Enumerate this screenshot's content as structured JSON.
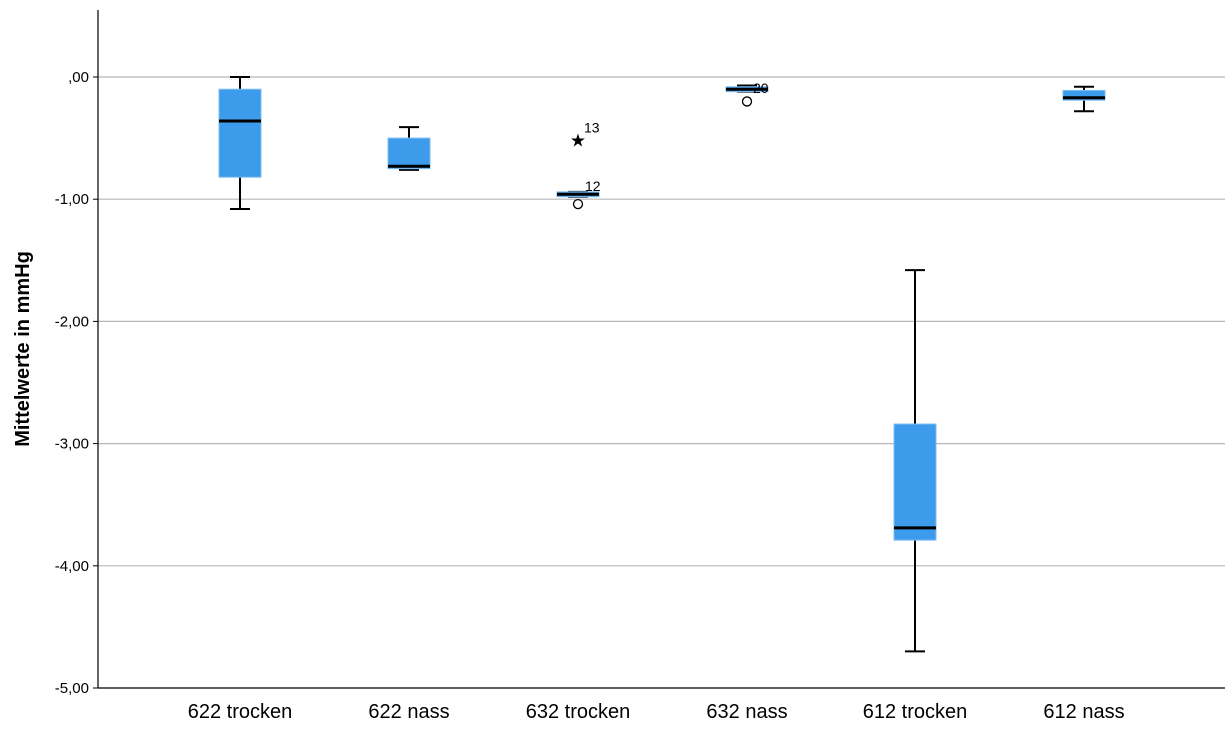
{
  "chart_data": {
    "type": "boxplot",
    "title": "",
    "xlabel": "",
    "ylabel": "Mittelwerte in mmHg",
    "ylim": [
      -5.0,
      0.55
    ],
    "yticks": [
      {
        "value": 0,
        "label": ",00"
      },
      {
        "value": -1,
        "label": "-1,00"
      },
      {
        "value": -2,
        "label": "-2,00"
      },
      {
        "value": -3,
        "label": "-3,00"
      },
      {
        "value": -4,
        "label": "-4,00"
      },
      {
        "value": -5,
        "label": "-5,00"
      }
    ],
    "grid": true,
    "box_color": "#3D9BEB",
    "median_color": "#000000",
    "categories": [
      "622 trocken",
      "622 nass",
      "632 trocken",
      "632 nass",
      "612 trocken",
      "612 nass"
    ],
    "boxes": [
      {
        "category": "622 trocken",
        "whisker_low": -1.08,
        "q1": -0.82,
        "median": -0.36,
        "q3": -0.1,
        "whisker_high": 0.0,
        "outliers": []
      },
      {
        "category": "622 nass",
        "whisker_low": -0.76,
        "q1": -0.75,
        "median": -0.73,
        "q3": -0.5,
        "whisker_high": -0.41,
        "outliers": []
      },
      {
        "category": "632 trocken",
        "whisker_low": -0.98,
        "q1": -0.98,
        "median": -0.96,
        "q3": -0.94,
        "whisker_high": -0.94,
        "outliers": [
          {
            "value": -0.52,
            "marker": "star",
            "label": "13"
          },
          {
            "value": -1.04,
            "marker": "circle",
            "label": "12"
          }
        ]
      },
      {
        "category": "632 nass",
        "whisker_low": -0.12,
        "q1": -0.12,
        "median": -0.1,
        "q3": -0.08,
        "whisker_high": -0.07,
        "outliers": [
          {
            "value": -0.2,
            "marker": "circle",
            "label": "20"
          }
        ]
      },
      {
        "category": "612 trocken",
        "whisker_low": -4.7,
        "q1": -3.79,
        "median": -3.69,
        "q3": -2.84,
        "whisker_high": -1.58,
        "outliers": []
      },
      {
        "category": "612 nass",
        "whisker_low": -0.28,
        "q1": -0.19,
        "median": -0.17,
        "q3": -0.11,
        "whisker_high": -0.08,
        "outliers": []
      }
    ]
  }
}
